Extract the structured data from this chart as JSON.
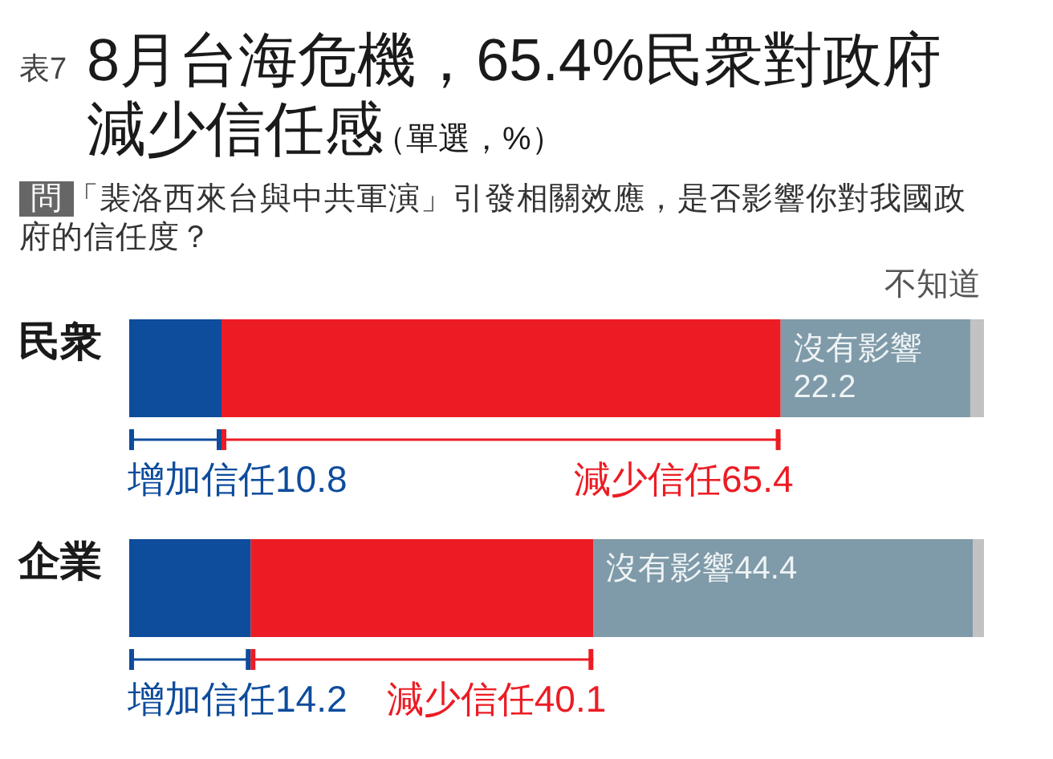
{
  "chart_data": {
    "type": "bar",
    "orientation": "horizontal",
    "stacked": true,
    "title": "8月台海危機，65.4%民衆對政府減少信任感",
    "subtitle": "「裴洛西來台與中共軍演」引發相關效應，是否影響你對我國政府的信任度？",
    "annotations": [
      "表7",
      "（單選，%）",
      "問"
    ],
    "categories": [
      "民衆",
      "企業"
    ],
    "series": [
      {
        "name": "增加信任",
        "color": "#0e4c9c",
        "values": [
          10.8,
          14.2
        ],
        "value_labels": [
          "10.8",
          "14.2"
        ]
      },
      {
        "name": "減少信任",
        "color": "#ec1c24",
        "values": [
          65.4,
          40.1
        ],
        "value_labels": [
          "65.4",
          "40.1"
        ]
      },
      {
        "name": "沒有影響",
        "color": "#7f9aa8",
        "values": [
          22.2,
          44.4
        ],
        "value_labels": [
          "22.2",
          "44.4"
        ]
      },
      {
        "name": "不知道",
        "color": "#c2c2c2",
        "values": [
          1.6,
          1.3
        ]
      }
    ],
    "xlim": [
      0,
      100
    ],
    "tick_labels": "y"
  }
}
